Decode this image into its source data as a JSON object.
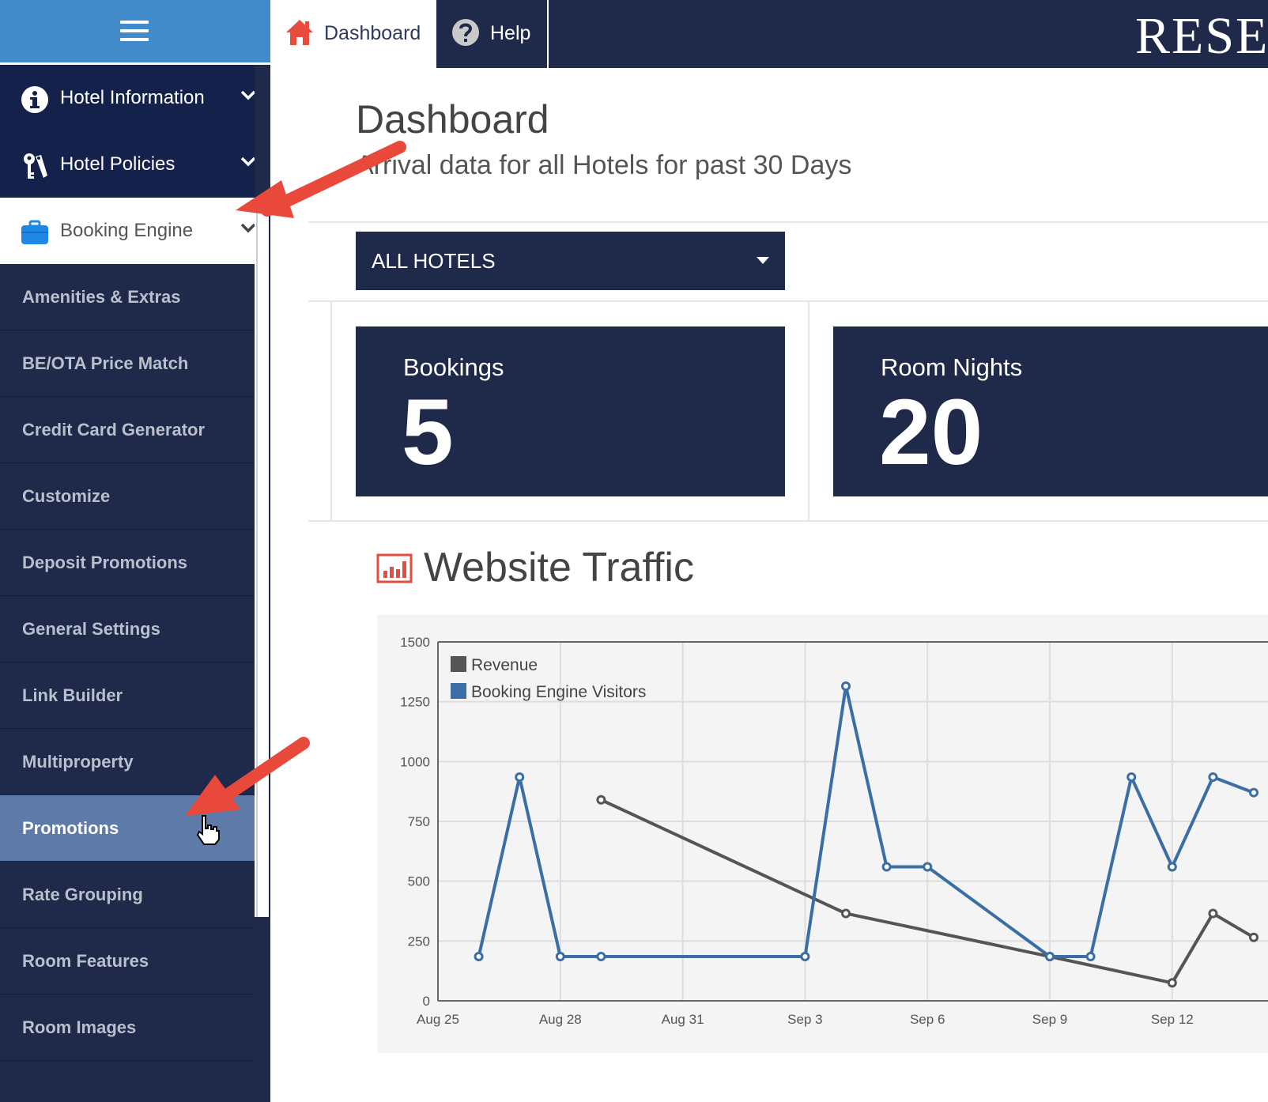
{
  "sidebar": {
    "top_items": [
      {
        "label": "Hotel Information",
        "icon": "info-icon"
      },
      {
        "label": "Hotel Policies",
        "icon": "keys-icon"
      },
      {
        "label": "Booking Engine",
        "icon": "briefcase-icon"
      }
    ],
    "sub_items": [
      {
        "label": "Amenities & Extras"
      },
      {
        "label": "BE/OTA Price Match"
      },
      {
        "label": "Credit Card Generator"
      },
      {
        "label": "Customize"
      },
      {
        "label": "Deposit Promotions"
      },
      {
        "label": "General Settings"
      },
      {
        "label": "Link Builder"
      },
      {
        "label": "Multiproperty"
      },
      {
        "label": "Promotions"
      },
      {
        "label": "Rate Grouping"
      },
      {
        "label": "Room Features"
      },
      {
        "label": "Room Images"
      }
    ],
    "active_top_item": "Booking Engine",
    "selected_sub_item": "Promotions"
  },
  "topbar": {
    "tabs": [
      {
        "label": "Dashboard",
        "icon": "home-icon"
      },
      {
        "label": "Help",
        "icon": "question-icon"
      }
    ],
    "brand": "RESE"
  },
  "main": {
    "title": "Dashboard",
    "subtitle": "Arrival data for all Hotels for past 30 Days",
    "hotel_filter": {
      "selected": "ALL HOTELS"
    },
    "stats": [
      {
        "label": "Bookings",
        "value": "5"
      },
      {
        "label": "Room Nights",
        "value": "20"
      }
    ],
    "traffic": {
      "title": "Website Traffic",
      "icon": "bar-chart-icon"
    }
  },
  "colors": {
    "navy": "#1f2a4a",
    "topbar_blue": "#428bca",
    "selected_item": "#5d7aa8",
    "accent_red": "#e74c3c",
    "revenue_series": "#555555",
    "visitors_series": "#3a6ea5"
  },
  "chart_data": {
    "type": "line",
    "x_tick_labels": [
      "Aug 25",
      "Aug 28",
      "Aug 31",
      "Sep 3",
      "Sep 6",
      "Sep 9",
      "Sep 12"
    ],
    "ylim": [
      0,
      1500
    ],
    "y_ticks": [
      0,
      250,
      500,
      750,
      1000,
      1250,
      1500
    ],
    "grid": true,
    "legend_position": "top-left",
    "series": [
      {
        "name": "Revenue",
        "color": "#555555",
        "points": [
          {
            "x": "Aug 29",
            "y": 840
          },
          {
            "x": "Sep 4",
            "y": 365
          },
          {
            "x": "Sep 9",
            "y": 185
          },
          {
            "x": "Sep 12",
            "y": 75
          },
          {
            "x": "Sep 13",
            "y": 365
          },
          {
            "x": "Sep 14",
            "y": 265
          }
        ]
      },
      {
        "name": "Booking Engine Visitors",
        "color": "#3a6ea5",
        "points": [
          {
            "x": "Aug 26",
            "y": 185
          },
          {
            "x": "Aug 27",
            "y": 935
          },
          {
            "x": "Aug 28",
            "y": 185
          },
          {
            "x": "Aug 29",
            "y": 185
          },
          {
            "x": "Sep 3",
            "y": 185
          },
          {
            "x": "Sep 4",
            "y": 1315
          },
          {
            "x": "Sep 5",
            "y": 560
          },
          {
            "x": "Sep 6",
            "y": 560
          },
          {
            "x": "Sep 9",
            "y": 185
          },
          {
            "x": "Sep 10",
            "y": 185
          },
          {
            "x": "Sep 11",
            "y": 935
          },
          {
            "x": "Sep 12",
            "y": 560
          },
          {
            "x": "Sep 13",
            "y": 935
          },
          {
            "x": "Sep 14",
            "y": 870
          }
        ]
      }
    ]
  }
}
